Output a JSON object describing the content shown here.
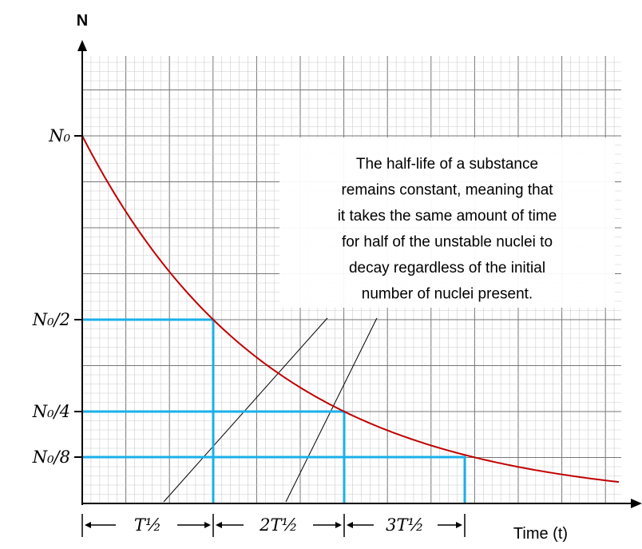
{
  "axis": {
    "y_label": "N",
    "x_label": "Time (t)"
  },
  "levels": [
    "N₀",
    "N₀/2",
    "N₀/4",
    "N₀/8"
  ],
  "intervals": [
    "T½",
    "2T½",
    "3T½"
  ],
  "annotation": [
    "The half-life of a substance",
    "remains constant, meaning that",
    "it takes the same amount of time",
    "for half of the unstable nuclei to",
    "decay regardless of the initial",
    "number of nuclei present."
  ]
}
